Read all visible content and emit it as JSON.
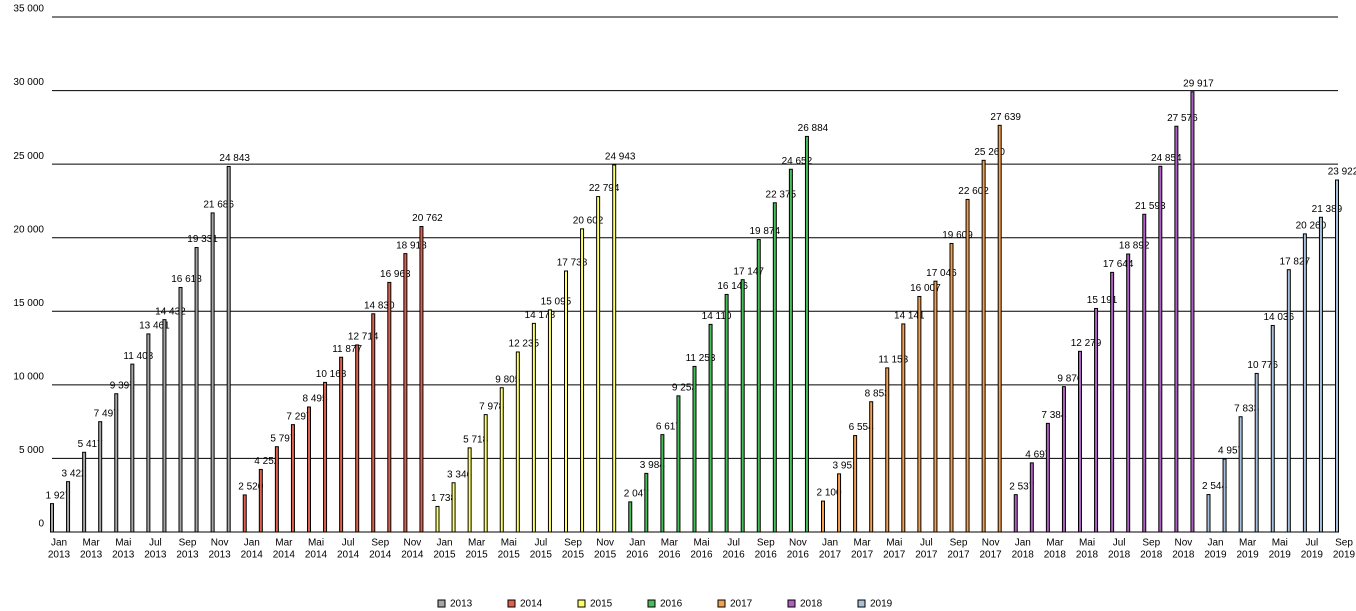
{
  "chart_data": {
    "type": "bar",
    "months": [
      "Jan",
      null,
      "Mar",
      null,
      "Mai",
      null,
      "Jul",
      null,
      "Sep",
      null,
      "Nov",
      null
    ],
    "ylim": [
      0,
      35000
    ],
    "yticks": [
      0,
      {
        "value": 5000,
        "label": "5 000"
      },
      {
        "value": 10000,
        "label": "10 000"
      },
      {
        "value": 15000,
        "label": "15 000"
      },
      {
        "value": 20000,
        "label": "20 000"
      },
      {
        "value": 25000,
        "label": "25 000"
      },
      {
        "value": 30000,
        "label": "30 000"
      },
      {
        "value": 35000,
        "label": "35 000"
      }
    ],
    "grid": true,
    "legend": "bottom",
    "series": [
      {
        "name": "2013",
        "color": "#a6a6a6",
        "values": [
          1927,
          3422,
          5417,
          7497,
          9397,
          11408,
          13461,
          14432,
          16618,
          19331,
          21686,
          24843
        ],
        "value_labels": [
          "1 927",
          "3 422",
          "5 417",
          "7 497",
          "9 397",
          "11 408",
          "13 461",
          "14 432",
          "16 618",
          "19 331",
          "21 686",
          "24 843"
        ]
      },
      {
        "name": "2014",
        "color": "#e0604f",
        "values": [
          2520,
          4252,
          5797,
          7297,
          8495,
          10168,
          11877,
          12714,
          14830,
          16963,
          18918,
          20762
        ],
        "value_labels": [
          "2 520",
          "4 252",
          "5 797",
          "7 297",
          "8 495",
          "10 168",
          "11 877",
          "12 714",
          "14 830",
          "16 963",
          "18 918",
          "20 762"
        ]
      },
      {
        "name": "2015",
        "color": "#ffff66",
        "values": [
          1738,
          3346,
          5718,
          7978,
          9805,
          12235,
          14178,
          15095,
          17738,
          20602,
          22794,
          24943
        ],
        "value_labels": [
          "1 738",
          "3 346",
          "5 718",
          "7 978",
          "9 805",
          "12 235",
          "14 178",
          "15 095",
          "17 738",
          "20 602",
          "22 794",
          "24 943"
        ]
      },
      {
        "name": "2016",
        "color": "#4cbb5a",
        "values": [
          2047,
          3984,
          6617,
          9253,
          11253,
          14110,
          16146,
          17147,
          19874,
          22375,
          24652,
          26884
        ],
        "value_labels": [
          "2 047",
          "3 984",
          "6 617",
          "9 253",
          "11 253",
          "14 110",
          "16 146",
          "17 147",
          "19 874",
          "22 375",
          "24 652",
          "26 884"
        ]
      },
      {
        "name": "2017",
        "color": "#f5a050",
        "values": [
          2100,
          3951,
          6554,
          8853,
          11153,
          14141,
          16007,
          17046,
          19609,
          22602,
          25260,
          27639
        ],
        "value_labels": [
          "2 100",
          "3 951",
          "6 554",
          "8 853",
          "11 153",
          "14 141",
          "16 007",
          "17 046",
          "19 609",
          "22 602",
          "25 260",
          "27 639"
        ]
      },
      {
        "name": "2018",
        "color": "#b060c0",
        "values": [
          2537,
          4697,
          7384,
          9876,
          12279,
          15191,
          17644,
          18892,
          21593,
          24854,
          27576,
          29917
        ],
        "value_labels": [
          "2 537",
          "4 697",
          "7 384",
          "9 876",
          "12 279",
          "15 191",
          "17 644",
          "18 892",
          "21 593",
          "24 854",
          "27 576",
          "29 917"
        ]
      },
      {
        "name": "2019",
        "color": "#a8c0d8",
        "values": [
          2544,
          4957,
          7833,
          10776,
          14036,
          17827,
          20260,
          21389,
          23922,
          null,
          null,
          null
        ],
        "value_labels": [
          "2 544",
          "4 957",
          "7 833",
          "10 776",
          "14 036",
          "17 827",
          "20 260",
          "21 389",
          "23 922",
          null,
          null,
          null
        ]
      }
    ]
  }
}
